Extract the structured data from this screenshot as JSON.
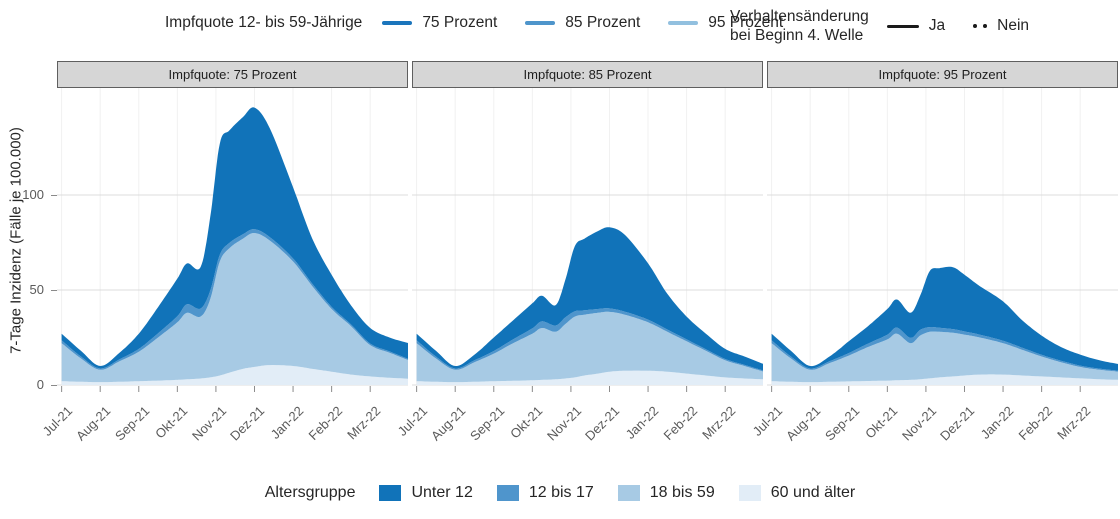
{
  "legend_vaccination": {
    "label": "Impfquote 12- bis 59-Jährige",
    "items": [
      {
        "label": "75 Prozent",
        "color": "#1b75bc"
      },
      {
        "label": "85 Prozent",
        "color": "#4e95cb"
      },
      {
        "label": "95 Prozent",
        "color": "#92c0df"
      }
    ]
  },
  "legend_behavior": {
    "label_line1": "Verhaltensänderung",
    "label_line2": "bei Beginn 4. Welle",
    "items": [
      {
        "label": "Ja",
        "style": "solid"
      },
      {
        "label": "Nein",
        "style": "dotted"
      }
    ],
    "line_color": "#1a1a1a"
  },
  "legend_age": {
    "label": "Altersgruppe",
    "items": [
      {
        "label": "Unter 12",
        "color": "#1173b9"
      },
      {
        "label": "12 bis 17",
        "color": "#4f95cc"
      },
      {
        "label": "18 bis 59",
        "color": "#a7cae4"
      },
      {
        "label": "60 und älter",
        "color": "#e2edf7"
      }
    ]
  },
  "chart_data": {
    "type": "area",
    "stacked": true,
    "facet_variable": "Impfquote",
    "ylabel": "7-Tage Inzidenz (Fälle je 100.000)",
    "y_ticks": [
      0,
      50,
      100
    ],
    "ylim": [
      0,
      156
    ],
    "x_ticks": [
      "Jul-21",
      "Aug-21",
      "Sep-21",
      "Okt-21",
      "Nov-21",
      "Dez-21",
      "Jan-22",
      "Feb-22",
      "Mrz-22"
    ],
    "x_tick_positions": [
      0,
      1,
      2,
      3,
      4,
      5,
      6,
      7,
      8
    ],
    "x_range": [
      -0.12,
      8.98
    ],
    "grid": {
      "h_color": "#dcdcdc",
      "v_color": "#f1f1f1",
      "tick_color": "#8a8a8a"
    },
    "x": [
      0,
      0.5,
      1,
      1.5,
      2,
      2.5,
      3,
      3.25,
      3.6,
      3.85,
      4.1,
      4.35,
      4.7,
      5,
      5.4,
      6,
      6.5,
      7,
      7.5,
      8,
      8.5,
      9
    ],
    "stack": [
      {
        "name": "60 und älter",
        "color": "#e2edf7"
      },
      {
        "name": "18 bis 59",
        "color": "#a7cae4"
      },
      {
        "name": "12 bis 17",
        "color": "#4f95cc"
      },
      {
        "name": "Unter 12",
        "color": "#1173b9"
      }
    ],
    "panels": [
      {
        "title": "Impfquote: 75 Prozent",
        "series": {
          "60 und älter": [
            2,
            1.7,
            1.5,
            1.7,
            2,
            2.3,
            2.7,
            3,
            3.4,
            4,
            5,
            6.5,
            8.5,
            9.5,
            10.5,
            10,
            8.5,
            7,
            5.5,
            4.5,
            3.8,
            3.3
          ],
          "18 bis 59": [
            20,
            12.3,
            6.5,
            10.8,
            15.5,
            22.7,
            30.3,
            35,
            32.6,
            41,
            60,
            65.5,
            68.5,
            70.5,
            65.5,
            55,
            43.5,
            33,
            25.5,
            16.5,
            13.2,
            9.7
          ],
          "12 bis 17": [
            1.5,
            1,
            0.7,
            1,
            1.5,
            2.2,
            3.2,
            4.5,
            4.2,
            4.5,
            3.5,
            2.8,
            2.3,
            2,
            1.8,
            1.6,
            1.3,
            1.1,
            0.9,
            0.8,
            0.7,
            0.6
          ],
          "Unter 12": [
            3.5,
            3,
            1.3,
            3.5,
            8,
            13.8,
            19.8,
            21.5,
            21.8,
            38.5,
            58.5,
            59.2,
            61.7,
            64,
            57.2,
            37.4,
            23.7,
            16.9,
            10.1,
            8.2,
            7.3,
            8.4
          ]
        }
      },
      {
        "title": "Impfquote: 85 Prozent",
        "series": {
          "60 und älter": [
            2,
            1.7,
            1.5,
            1.7,
            2,
            2.2,
            2.5,
            2.7,
            3,
            3.4,
            4,
            5,
            6,
            7,
            7.5,
            7.5,
            7,
            6,
            5,
            4,
            3.4,
            3
          ],
          "18 bis 59": [
            20,
            12.3,
            6.5,
            10.3,
            14.5,
            19.8,
            24.5,
            27.3,
            25,
            28.6,
            32,
            32,
            32,
            31.5,
            29.5,
            25.5,
            21,
            17,
            13,
            9,
            6.6,
            4
          ],
          "12 bis 17": [
            1.5,
            1,
            0.7,
            1,
            1.4,
            2,
            2.8,
            3.5,
            3.3,
            3.5,
            2.8,
            2.3,
            2,
            1.8,
            1.6,
            1.4,
            1.2,
            1,
            0.8,
            0.7,
            0.6,
            0.5
          ],
          "Unter 12": [
            3.5,
            3,
            1.3,
            3,
            7.1,
            10,
            13.2,
            13.5,
            10.7,
            19.5,
            34.2,
            37.7,
            41,
            42.7,
            40.4,
            29.6,
            18.8,
            12,
            8.2,
            5.3,
            4.4,
            3.5
          ]
        }
      },
      {
        "title": "Impfquote: 95 Prozent",
        "series": {
          "60 und älter": [
            2,
            1.7,
            1.5,
            1.7,
            1.9,
            2.1,
            2.3,
            2.5,
            2.7,
            3,
            3.5,
            4,
            4.5,
            5,
            5.5,
            5.5,
            5,
            4.5,
            4,
            3.5,
            3,
            2.7
          ],
          "18 bis 59": [
            20,
            12.3,
            6.5,
            9.8,
            13.6,
            17.9,
            21.7,
            24.5,
            19.3,
            23,
            24.5,
            24,
            23,
            21.5,
            19.5,
            16.5,
            13.5,
            10.5,
            8,
            6,
            5,
            4.3
          ],
          "12 bis 17": [
            1.5,
            1,
            0.7,
            1,
            1.3,
            1.8,
            2.5,
            3.2,
            2.8,
            3,
            2.5,
            2.1,
            1.9,
            1.7,
            1.5,
            1.3,
            1.1,
            0.9,
            0.8,
            0.7,
            0.6,
            0.5
          ],
          "Unter 12": [
            3.5,
            3,
            1.3,
            2.5,
            6.2,
            9.2,
            13.5,
            14.8,
            13.2,
            18,
            29.5,
            31.4,
            32.6,
            29.8,
            25.5,
            20.7,
            14.4,
            10.1,
            7.2,
            5.8,
            4.4,
            3.5
          ]
        }
      }
    ]
  }
}
